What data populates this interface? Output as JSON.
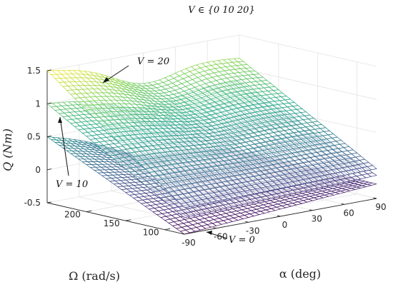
{
  "chart_data": {
    "type": "surface",
    "title": "V ∈ {0 10 20}",
    "xlabel": "α (deg)",
    "ylabel": "Ω (rad/s)",
    "zlabel": "Q (Nm)",
    "xlim": [
      -90,
      90
    ],
    "ylim": [
      75,
      250
    ],
    "zlim": [
      -0.5,
      1.5
    ],
    "x_ticks": [
      "-90",
      "-60",
      "-30",
      "0",
      "30",
      "60",
      "90"
    ],
    "y_ticks": [
      "100",
      "150",
      "200"
    ],
    "z_ticks": [
      "-0.5",
      "0",
      "0.5",
      "1",
      "1.5"
    ],
    "grid": true,
    "colormap": "viridis",
    "mesh_size": [
      37,
      36
    ],
    "series": [
      {
        "name": "V = 0",
        "corners": {
          "alpha_-90_Omega_250": 0.5,
          "alpha_-90_Omega_75": -0.5,
          "alpha_90_Omega_250": -0.25,
          "alpha_90_Omega_75": -0.28
        }
      },
      {
        "name": "V = 10",
        "corners": {
          "alpha_-90_Omega_250": 1.0,
          "alpha_-90_Omega_75": -0.25,
          "alpha_90_Omega_250": 0.8,
          "alpha_90_Omega_75": -0.15
        }
      },
      {
        "name": "V = 20",
        "corners": {
          "alpha_-90_Omega_250": 1.5,
          "alpha_-90_Omega_75": -0.1,
          "alpha_90_Omega_250": 1.15,
          "alpha_90_Omega_75": -0.05
        }
      }
    ],
    "annotations": [
      "V = 20",
      "V = 10",
      "V = 0"
    ]
  }
}
